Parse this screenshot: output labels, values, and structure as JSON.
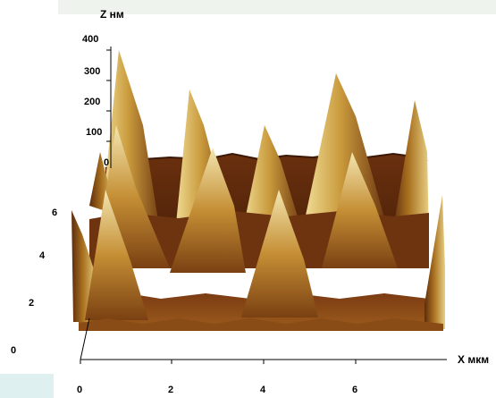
{
  "figure": {
    "z_axis": {
      "label": "Z нм",
      "ticks": [
        "400",
        "300",
        "200",
        "100",
        "0"
      ]
    },
    "y_axis": {
      "ticks": [
        "6",
        "4",
        "2",
        "0"
      ]
    },
    "x_axis": {
      "label": "X мкм",
      "ticks": [
        "0",
        "2",
        "4",
        "6"
      ]
    },
    "colors": {
      "background": "#ffffff",
      "top_band": "#eef3ee",
      "corner_tint": "#dff0f0",
      "surface_dark": "#5a2a0c",
      "surface_mid": "#8b4a14",
      "peak_light": "#f3e2a0"
    }
  }
}
